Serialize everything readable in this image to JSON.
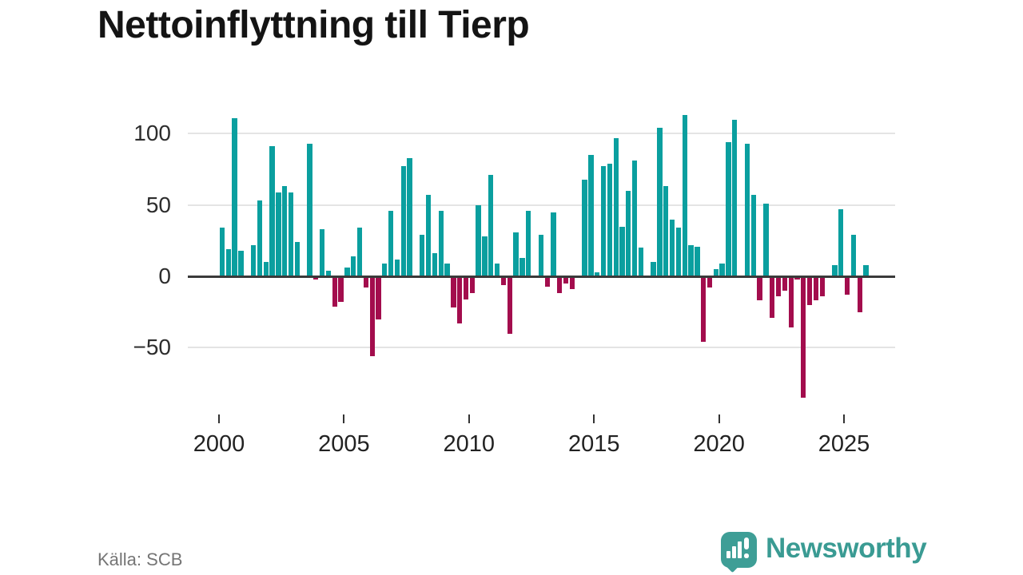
{
  "title": "Nettoinflyttning till Tierp",
  "source": "Källa: SCB",
  "branding": {
    "name": "Newsworthy",
    "icon": "newsworthy-bubble-barchart-icon"
  },
  "colors": {
    "positive_bar": "#0a9f9f",
    "negative_bar": "#a30d4d",
    "gridline": "#e4e4e4",
    "zero_line": "#3a3a3a",
    "brand": "#3e9e96"
  },
  "chart_data": {
    "type": "bar",
    "title": "Nettoinflyttning till Tierp",
    "xlabel": "",
    "ylabel": "",
    "frequency": "quarterly",
    "start_year": 2000,
    "start_quarter": 1,
    "values": [
      34,
      19,
      111,
      18,
      0,
      22,
      53,
      10,
      91,
      59,
      63,
      59,
      24,
      0,
      93,
      -2,
      33,
      4,
      -21,
      -18,
      6,
      14,
      34,
      -8,
      -56,
      -30,
      9,
      46,
      12,
      77,
      83,
      0,
      29,
      57,
      16,
      46,
      9,
      -22,
      -33,
      -16,
      -12,
      50,
      28,
      71,
      9,
      -6,
      -40,
      31,
      13,
      46,
      0,
      29,
      -7,
      45,
      -12,
      -5,
      -9,
      0,
      68,
      85,
      3,
      77,
      79,
      97,
      35,
      60,
      81,
      20,
      0,
      10,
      104,
      63,
      40,
      34,
      113,
      22,
      21,
      -46,
      -8,
      5,
      9,
      94,
      110,
      0,
      93,
      57,
      -17,
      51,
      -29,
      -14,
      -10,
      -36,
      -2,
      -85,
      -20,
      -17,
      -14,
      0,
      8,
      47,
      -13,
      29,
      -25,
      8
    ],
    "x_ticks": [
      2000,
      2005,
      2010,
      2015,
      2020,
      2025
    ],
    "x_tick_labels": [
      "2000",
      "2005",
      "2010",
      "2015",
      "2020",
      "2025"
    ],
    "y_ticks": [
      100,
      50,
      0,
      -50
    ],
    "y_tick_labels": [
      "100",
      "50",
      "0",
      "−50"
    ],
    "ylim": [
      -90,
      115
    ],
    "grid": true,
    "legend": false
  }
}
